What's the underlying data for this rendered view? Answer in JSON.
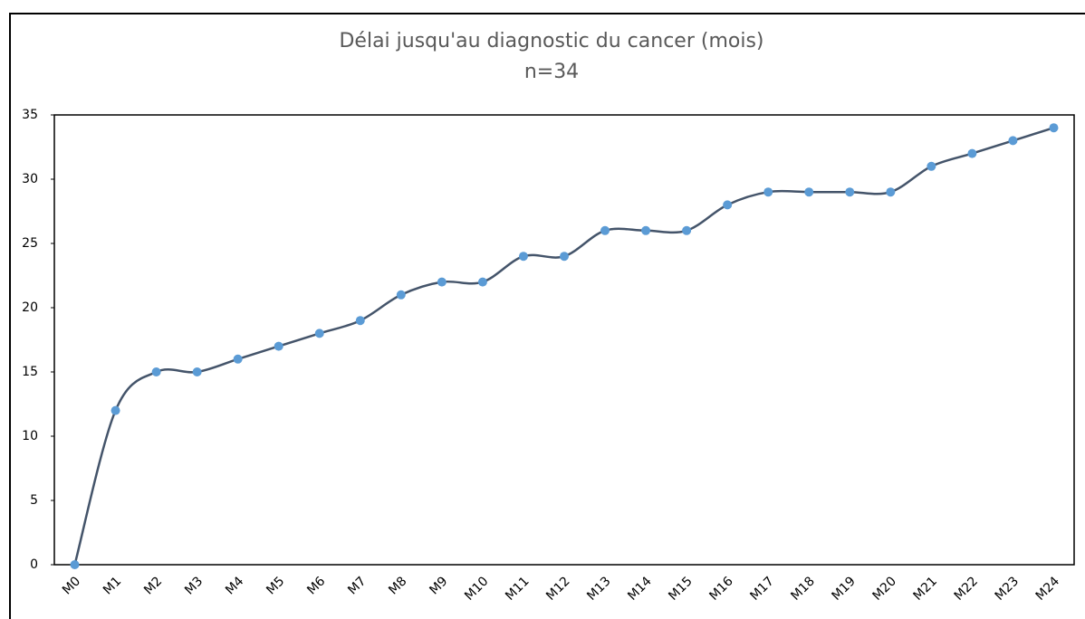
{
  "chart_data": {
    "type": "line",
    "title": "Délai jusqu'au diagnostic du cancer (mois)",
    "subtitle": "n=34",
    "categories": [
      "M0",
      "M1",
      "M2",
      "M3",
      "M4",
      "M5",
      "M6",
      "M7",
      "M8",
      "M9",
      "M10",
      "M11",
      "M12",
      "M13",
      "M14",
      "M15",
      "M16",
      "M17",
      "M18",
      "M19",
      "M20",
      "M21",
      "M22",
      "M23",
      "M24"
    ],
    "series": [
      {
        "name": "Délai",
        "color": "#44546a",
        "marker_color": "#5b9bd5",
        "values": [
          0,
          12,
          15,
          15,
          16,
          17,
          18,
          19,
          21,
          22,
          22,
          24,
          24,
          26,
          26,
          26,
          28,
          29,
          29,
          29,
          29,
          31,
          32,
          33,
          34
        ]
      }
    ],
    "ylim": [
      0,
      35
    ],
    "yticks": [
      0,
      5,
      10,
      15,
      20,
      25,
      30,
      35
    ],
    "smooth": true,
    "legend": false
  }
}
